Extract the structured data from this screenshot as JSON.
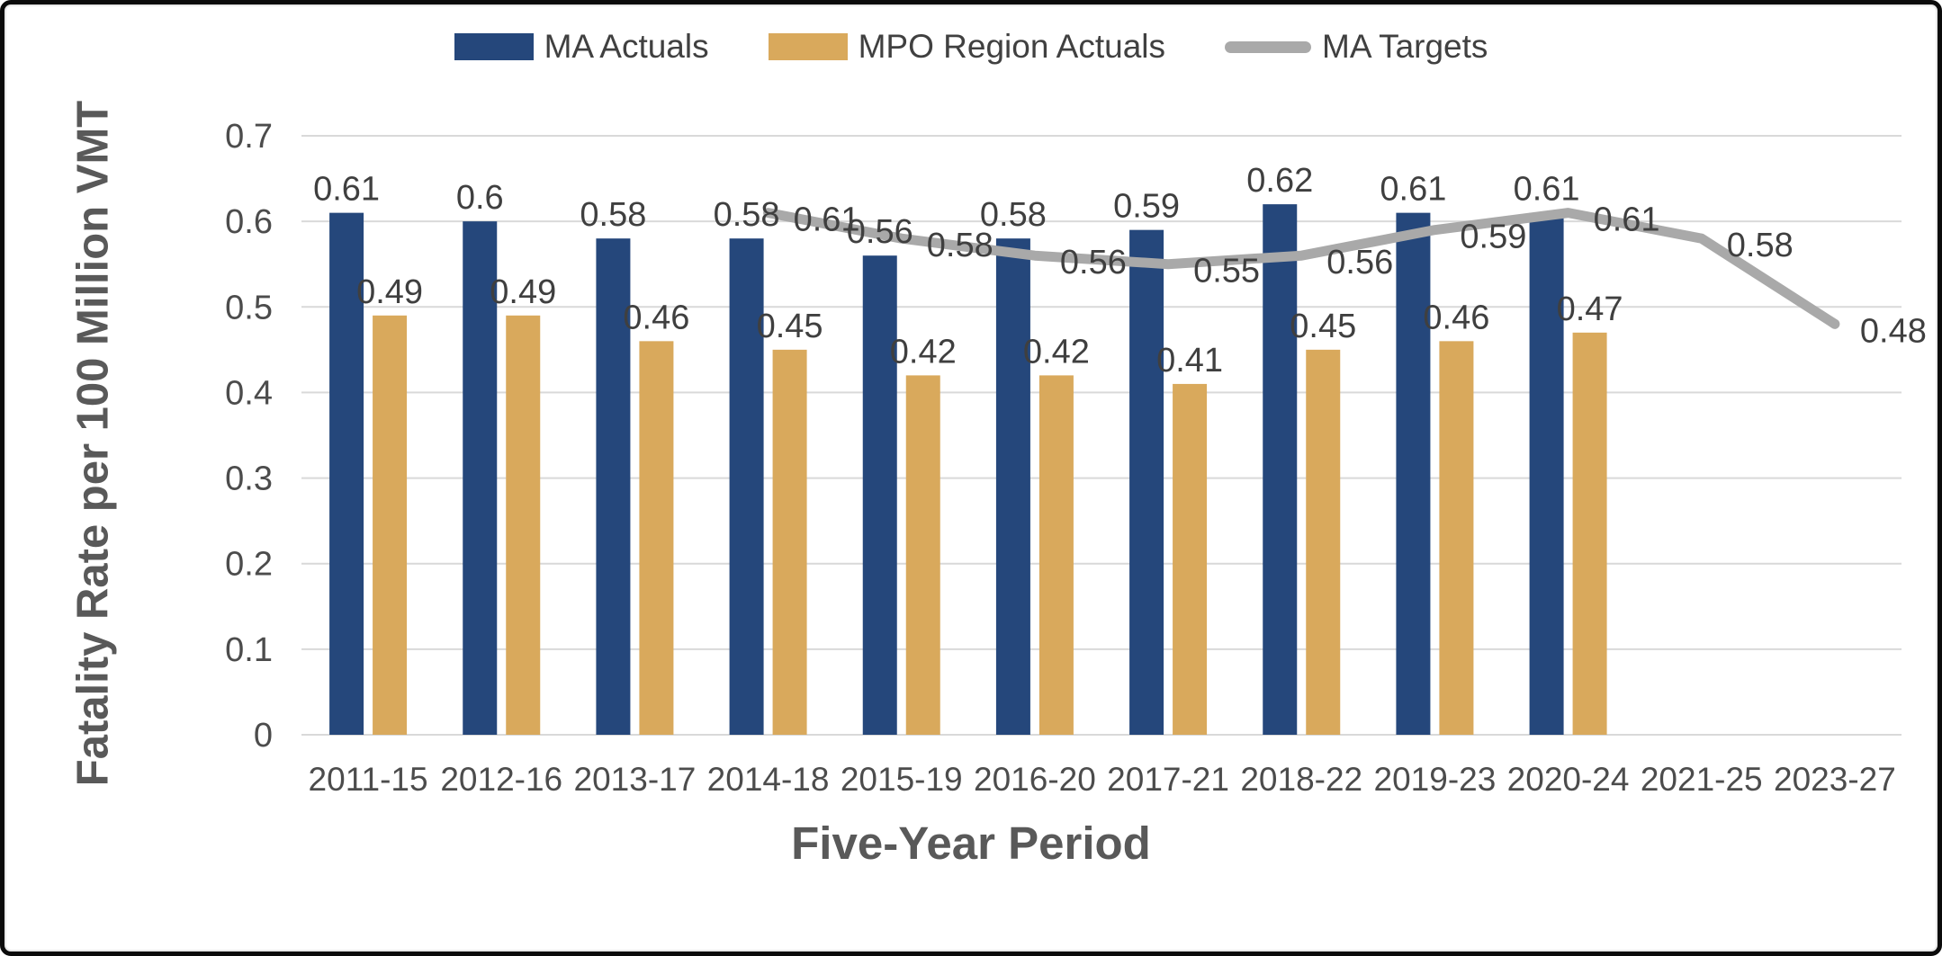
{
  "colors": {
    "ma_actuals": "#25477B",
    "mpo_actuals": "#D9A95C",
    "ma_targets": "#A9A9A9",
    "data_label": "#3F3F3F",
    "axis_text": "#4C4C4C",
    "axis_title": "#595959",
    "gridline": "#D9D9D9",
    "frame_border": "#0B0B0B"
  },
  "legend": [
    {
      "label": "MA Actuals",
      "swatch": "rect",
      "color": "#25477B"
    },
    {
      "label": "MPO Region Actuals",
      "swatch": "rect",
      "color": "#D9A95C"
    },
    {
      "label": "MA Targets",
      "swatch": "line",
      "color": "#A9A9A9"
    }
  ],
  "chart_data": {
    "type": "bar+line",
    "title": "",
    "xlabel": "Five-Year Period",
    "ylabel": "Fatality Rate per 100 Million VMT",
    "categories": [
      "2011-15",
      "2012-16",
      "2013-17",
      "2014-18",
      "2015-19",
      "2016-20",
      "2017-21",
      "2018-22",
      "2019-23",
      "2020-24",
      "2021-25",
      "2023-27"
    ],
    "ylim": [
      0,
      0.7
    ],
    "ytick_labels": [
      "0.7",
      "0.6",
      "0.5",
      "0.4",
      "0.3",
      "0.2",
      "0.1",
      "0"
    ],
    "ytick_values": [
      0.7,
      0.6,
      0.5,
      0.4,
      0.3,
      0.2,
      0.1,
      0
    ],
    "grid": true,
    "legend_position": "top",
    "series": [
      {
        "name": "MA Actuals",
        "type": "bar",
        "color": "#25477B",
        "values": [
          0.61,
          0.6,
          0.58,
          0.58,
          0.56,
          0.58,
          0.59,
          0.62,
          0.61,
          0.61,
          null,
          null
        ],
        "labels": [
          "0.61",
          "0.6",
          "0.58",
          "0.58",
          "0.56",
          "0.58",
          "0.59",
          "0.62",
          "0.61",
          "0.61",
          "",
          ""
        ]
      },
      {
        "name": "MPO Region Actuals",
        "type": "bar",
        "color": "#D9A95C",
        "values": [
          0.49,
          0.49,
          0.46,
          0.45,
          0.42,
          0.42,
          0.41,
          0.45,
          0.46,
          0.47,
          null,
          null
        ],
        "labels": [
          "0.49",
          "0.49",
          "0.46",
          "0.45",
          "0.42",
          "0.42",
          "0.41",
          "0.45",
          "0.46",
          "0.47",
          "",
          ""
        ]
      },
      {
        "name": "MA Targets",
        "type": "line",
        "color": "#A9A9A9",
        "values": [
          null,
          null,
          null,
          0.61,
          0.58,
          0.56,
          0.55,
          0.56,
          0.59,
          0.61,
          0.58,
          0.48
        ],
        "labels": [
          "",
          "",
          "",
          "0.61",
          "0.58",
          "0.56",
          "0.55",
          "0.56",
          "0.59",
          "0.61",
          "0.58",
          "0.48"
        ]
      }
    ]
  }
}
